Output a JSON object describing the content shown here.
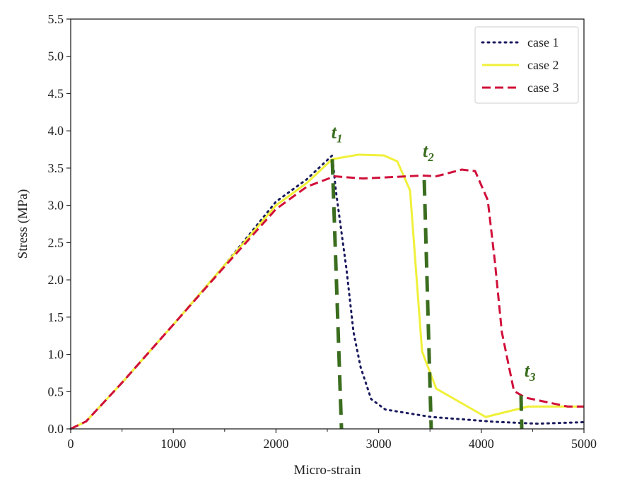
{
  "chart_data": {
    "type": "line",
    "title": "",
    "xlabel": "Micro-strain",
    "ylabel": "Stress (MPa)",
    "xlim": [
      0,
      5000
    ],
    "ylim": [
      0,
      5.5
    ],
    "xticks": [
      "0",
      "1000",
      "2000",
      "3000",
      "4000",
      "5000"
    ],
    "yticks": [
      "0.0",
      "0.5",
      "1.0",
      "1.5",
      "2.0",
      "2.5",
      "3.0",
      "3.5",
      "4.0",
      "4.5",
      "5.0",
      "5.5"
    ],
    "grid": false,
    "legend_position": "top-right",
    "series": [
      {
        "name": "case 1",
        "style": "dotted",
        "color": "#1a1a5e",
        "x": [
          0,
          150,
          500,
          1000,
          1500,
          2000,
          2300,
          2548,
          2583,
          2686,
          2755,
          2824,
          2927,
          3065,
          3512,
          4132,
          4545,
          5000
        ],
        "y": [
          0,
          0.1,
          0.62,
          1.4,
          2.2,
          3.05,
          3.35,
          3.67,
          3.2,
          2.15,
          1.3,
          0.83,
          0.4,
          0.26,
          0.16,
          0.095,
          0.07,
          0.09
        ]
      },
      {
        "name": "case 2",
        "style": "solid",
        "color": "#f0f03a",
        "x": [
          0,
          150,
          500,
          1000,
          1500,
          2000,
          2300,
          2548,
          2803,
          3051,
          3182,
          3306,
          3423,
          3561,
          4043,
          4456,
          5000
        ],
        "y": [
          0,
          0.1,
          0.62,
          1.4,
          2.2,
          3.0,
          3.3,
          3.62,
          3.68,
          3.67,
          3.59,
          3.2,
          1.04,
          0.54,
          0.16,
          0.3,
          0.3
        ]
      },
      {
        "name": "case 3",
        "style": "dashed",
        "color": "#d0103a",
        "x": [
          0,
          150,
          500,
          1000,
          1500,
          2000,
          2300,
          2570,
          2845,
          3423,
          3561,
          3809,
          3940,
          4063,
          4132,
          4200,
          4318,
          4428,
          4842,
          5000
        ],
        "y": [
          0,
          0.1,
          0.62,
          1.4,
          2.18,
          2.95,
          3.25,
          3.39,
          3.36,
          3.4,
          3.39,
          3.48,
          3.46,
          3.07,
          2.25,
          1.3,
          0.51,
          0.42,
          0.3,
          0.3
        ]
      }
    ],
    "markers": [
      {
        "label": "t",
        "sub": "1",
        "x": [
          2548,
          2638
        ],
        "y": [
          3.62,
          0
        ],
        "label_at": [
          2540,
          3.9
        ]
      },
      {
        "label": "t",
        "sub": "2",
        "x": [
          3444,
          3512
        ],
        "y": [
          3.34,
          0
        ],
        "label_at": [
          3430,
          3.65
        ]
      },
      {
        "label": "t",
        "sub": "3",
        "x": [
          4387,
          4394
        ],
        "y": [
          0.45,
          0
        ],
        "label_at": [
          4420,
          0.7
        ]
      }
    ],
    "marker_color": "#3a6d1e"
  }
}
